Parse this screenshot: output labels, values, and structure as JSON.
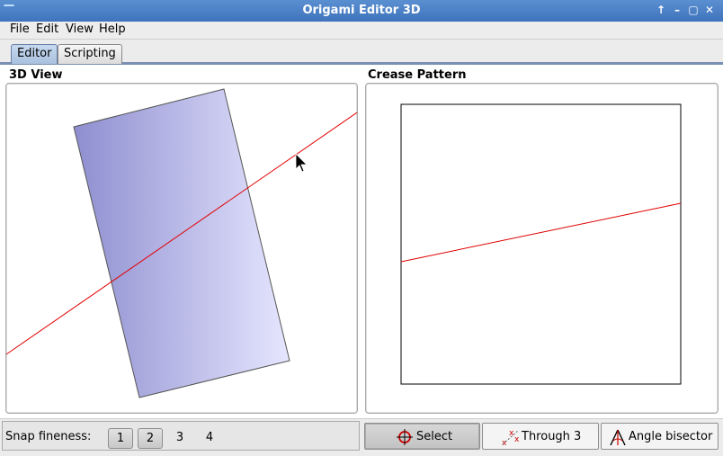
{
  "window": {
    "title": "Origami Editor 3D",
    "controls": [
      "↑",
      "–",
      "▢",
      "✕"
    ]
  },
  "menubar": {
    "items": [
      "File",
      "Edit",
      "View",
      "Help"
    ]
  },
  "tabs": [
    {
      "label": "Editor",
      "active": true
    },
    {
      "label": "Scripting",
      "active": false
    }
  ],
  "panels": {
    "view3d_title": "3D View",
    "crease_title": "Crease Pattern"
  },
  "colors": {
    "crease_line": "#e00000",
    "paper_dark": "#8e8ed0",
    "paper_light": "#e6e6ff"
  },
  "statusbar": {
    "snap_label": "Snap fineness:",
    "snap_options": [
      {
        "label": "1",
        "toggled": true
      },
      {
        "label": "2",
        "toggled": true
      },
      {
        "label": "3",
        "toggled": false
      },
      {
        "label": "4",
        "toggled": false
      }
    ],
    "tools": [
      {
        "label": "Select",
        "icon": "crosshair-icon",
        "active": true
      },
      {
        "label": "Through 3",
        "icon": "three-points-icon",
        "active": false
      },
      {
        "label": "Angle bisector",
        "icon": "angle-bisector-icon",
        "active": false
      }
    ]
  }
}
